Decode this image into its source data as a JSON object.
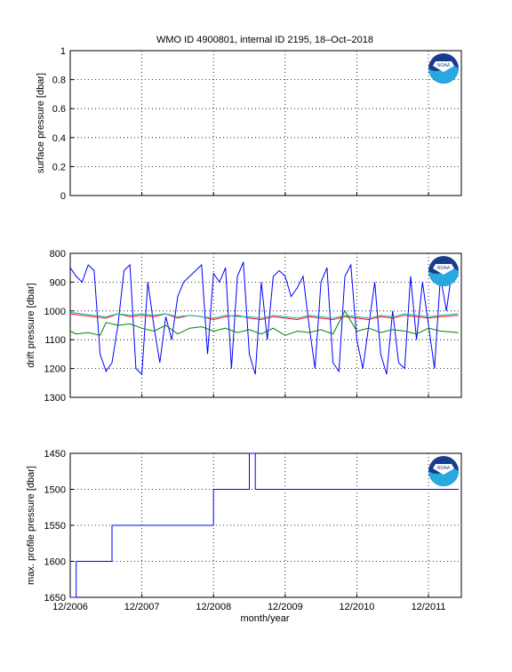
{
  "figure": {
    "title": "WMO ID 4900801, internal ID 2195, 18–Oct–2018",
    "xlabel": "month/year",
    "x_ticks": [
      "12/2006",
      "12/2007",
      "12/2008",
      "12/2009",
      "12/2010",
      "12/2011"
    ],
    "logo_text": "NOAA",
    "colors": {
      "blue": "#0000ff",
      "red": "#ff0000",
      "green": "#008000",
      "cyan": "#00bfbf"
    }
  },
  "chart_data": [
    {
      "type": "line",
      "ylabel": "surface pressure [dbar]",
      "ylim": [
        0,
        1
      ],
      "y_reversed": false,
      "y_ticks": [
        "0",
        "0.2",
        "0.4",
        "0.6",
        "0.8",
        "1"
      ],
      "grid": true,
      "series": []
    },
    {
      "type": "line",
      "ylabel": "drift pressure [dbar]",
      "ylim": [
        800,
        1300
      ],
      "y_reversed": true,
      "y_ticks": [
        "800",
        "900",
        "1000",
        "1100",
        "1200",
        "1300"
      ],
      "grid": true,
      "series": [
        {
          "color": "#0000ff",
          "x": [
            "2006-12",
            "2007-01",
            "2007-02",
            "2007-03",
            "2007-04",
            "2007-05",
            "2007-06",
            "2007-07",
            "2007-08",
            "2007-09",
            "2007-10",
            "2007-11",
            "2007-12",
            "2008-01",
            "2008-02",
            "2008-03",
            "2008-04",
            "2008-05",
            "2008-06",
            "2008-07",
            "2008-08",
            "2008-09",
            "2008-10",
            "2008-11",
            "2008-12",
            "2009-01",
            "2009-02",
            "2009-03",
            "2009-04",
            "2009-05",
            "2009-06",
            "2009-07",
            "2009-08",
            "2009-09",
            "2009-10",
            "2009-11",
            "2009-12",
            "2010-01",
            "2010-02",
            "2010-03",
            "2010-04",
            "2010-05",
            "2010-06",
            "2010-07",
            "2010-08",
            "2010-09",
            "2010-10",
            "2010-11",
            "2010-12",
            "2011-01",
            "2011-02",
            "2011-03",
            "2011-04",
            "2011-05",
            "2011-06",
            "2011-07",
            "2011-08",
            "2011-09",
            "2011-10",
            "2011-11",
            "2011-12",
            "2012-01",
            "2012-02",
            "2012-03",
            "2012-04",
            "2012-05"
          ],
          "y": [
            850,
            880,
            900,
            840,
            860,
            1150,
            1210,
            1180,
            1050,
            860,
            840,
            1200,
            1220,
            900,
            1050,
            1180,
            1020,
            1100,
            950,
            900,
            880,
            860,
            840,
            1150,
            870,
            900,
            850,
            1200,
            880,
            830,
            1150,
            1220,
            900,
            1100,
            880,
            860,
            880,
            950,
            920,
            880,
            1050,
            1200,
            900,
            850,
            1180,
            1210,
            880,
            840,
            1100,
            1200,
            1050,
            900,
            1150,
            1220,
            1000,
            1180,
            1200,
            880,
            1100,
            900,
            1050,
            1200,
            880,
            1000,
            850,
            880
          ]
        },
        {
          "color": "#ff0000",
          "x": [
            "2006-12",
            "2007-02",
            "2007-04",
            "2007-06",
            "2007-08",
            "2007-10",
            "2007-12",
            "2008-02",
            "2008-04",
            "2008-06",
            "2008-08",
            "2008-10",
            "2008-12",
            "2009-02",
            "2009-04",
            "2009-06",
            "2009-08",
            "2009-10",
            "2009-12",
            "2010-02",
            "2010-04",
            "2010-06",
            "2010-08",
            "2010-10",
            "2010-12",
            "2011-02",
            "2011-04",
            "2011-06",
            "2011-08",
            "2011-10",
            "2011-12",
            "2012-02",
            "2012-05"
          ],
          "y": [
            1010,
            1015,
            1020,
            1025,
            1010,
            1020,
            1015,
            1020,
            1010,
            1025,
            1015,
            1020,
            1030,
            1020,
            1015,
            1025,
            1030,
            1020,
            1025,
            1030,
            1020,
            1025,
            1030,
            1020,
            1025,
            1030,
            1020,
            1025,
            1015,
            1020,
            1025,
            1020,
            1015
          ]
        },
        {
          "color": "#00bfbf",
          "x": [
            "2006-12",
            "2007-02",
            "2007-04",
            "2007-06",
            "2007-08",
            "2007-10",
            "2007-12",
            "2008-02",
            "2008-04",
            "2008-06",
            "2008-08",
            "2008-10",
            "2008-12",
            "2009-02",
            "2009-04",
            "2009-06",
            "2009-08",
            "2009-10",
            "2009-12",
            "2010-02",
            "2010-04",
            "2010-06",
            "2010-08",
            "2010-10",
            "2010-12",
            "2011-02",
            "2011-04",
            "2011-06",
            "2011-08",
            "2011-10",
            "2011-12",
            "2012-02",
            "2012-05"
          ],
          "y": [
            1005,
            1010,
            1015,
            1020,
            1010,
            1015,
            1010,
            1015,
            1010,
            1020,
            1015,
            1020,
            1025,
            1015,
            1020,
            1020,
            1025,
            1015,
            1020,
            1025,
            1015,
            1020,
            1025,
            1015,
            1020,
            1025,
            1015,
            1020,
            1010,
            1015,
            1020,
            1015,
            1010
          ]
        },
        {
          "color": "#008000",
          "x": [
            "2006-12",
            "2007-01",
            "2007-03",
            "2007-05",
            "2007-06",
            "2007-08",
            "2007-10",
            "2007-12",
            "2008-02",
            "2008-04",
            "2008-06",
            "2008-08",
            "2008-10",
            "2008-12",
            "2009-02",
            "2009-04",
            "2009-06",
            "2009-08",
            "2009-10",
            "2009-12",
            "2010-02",
            "2010-04",
            "2010-06",
            "2010-08",
            "2010-10",
            "2010-12",
            "2011-02",
            "2011-04",
            "2011-06",
            "2011-08",
            "2011-10",
            "2011-12",
            "2012-02",
            "2012-05"
          ],
          "y": [
            1070,
            1080,
            1075,
            1085,
            1040,
            1050,
            1045,
            1060,
            1070,
            1050,
            1080,
            1060,
            1055,
            1070,
            1060,
            1075,
            1065,
            1080,
            1060,
            1085,
            1070,
            1075,
            1065,
            1080,
            1000,
            1070,
            1060,
            1075,
            1065,
            1070,
            1080,
            1060,
            1070,
            1075
          ]
        }
      ]
    },
    {
      "type": "line",
      "ylabel": "max. profile pressure [dbar]",
      "ylim": [
        1450,
        1650
      ],
      "y_reversed": true,
      "y_ticks": [
        "1450",
        "1500",
        "1550",
        "1600",
        "1650"
      ],
      "grid": true,
      "series": [
        {
          "color": "#0000ff",
          "x": [
            "2006-12",
            "2007-01",
            "2007-01",
            "2007-07",
            "2007-07",
            "2008-12",
            "2008-12",
            "2009-06",
            "2009-06",
            "2009-07",
            "2009-07",
            "2012-05"
          ],
          "y": [
            1650,
            1650,
            1600,
            1600,
            1550,
            1550,
            1500,
            1500,
            1450,
            1450,
            1500,
            1500
          ]
        }
      ]
    }
  ]
}
